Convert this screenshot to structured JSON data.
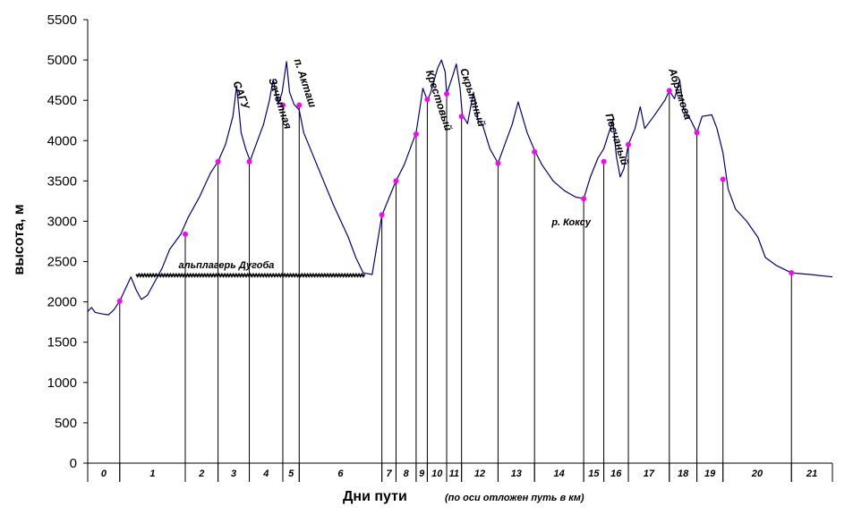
{
  "chart_data": {
    "type": "line",
    "xlabel": "Дни пути",
    "xlabel_note": "(по оси отложен путь в км)",
    "ylabel": "высота, м",
    "ylim": [
      0,
      5500
    ],
    "yticks": [
      0,
      500,
      1000,
      1500,
      2000,
      2500,
      3000,
      3500,
      4000,
      4500,
      5000,
      5500
    ],
    "grid": false,
    "days": [
      "0",
      "1",
      "2",
      "3",
      "4",
      "5",
      "6",
      "7",
      "8",
      "9",
      "10",
      "11",
      "12",
      "13",
      "14",
      "15",
      "16",
      "17",
      "18",
      "19",
      "20",
      "21"
    ],
    "day_boundaries": [
      0,
      0.043,
      0.131,
      0.175,
      0.217,
      0.262,
      0.284,
      0.395,
      0.414,
      0.441,
      0.456,
      0.482,
      0.502,
      0.551,
      0.6,
      0.666,
      0.693,
      0.726,
      0.781,
      0.818,
      0.853,
      0.945,
      1
    ],
    "profile": [
      [
        0,
        1880
      ],
      [
        0.005,
        1930
      ],
      [
        0.01,
        1870
      ],
      [
        0.02,
        1850
      ],
      [
        0.028,
        1840
      ],
      [
        0.035,
        1900
      ],
      [
        0.043,
        2010
      ],
      [
        0.05,
        2150
      ],
      [
        0.058,
        2310
      ],
      [
        0.065,
        2150
      ],
      [
        0.072,
        2030
      ],
      [
        0.08,
        2080
      ],
      [
        0.09,
        2250
      ],
      [
        0.1,
        2420
      ],
      [
        0.11,
        2650
      ],
      [
        0.125,
        2840
      ],
      [
        0.135,
        3050
      ],
      [
        0.15,
        3300
      ],
      [
        0.165,
        3600
      ],
      [
        0.175,
        3740
      ],
      [
        0.185,
        3950
      ],
      [
        0.195,
        4300
      ],
      [
        0.2,
        4680
      ],
      [
        0.206,
        4100
      ],
      [
        0.212,
        3900
      ],
      [
        0.218,
        3750
      ],
      [
        0.228,
        4000
      ],
      [
        0.236,
        4200
      ],
      [
        0.244,
        4500
      ],
      [
        0.249,
        4760
      ],
      [
        0.253,
        4580
      ],
      [
        0.256,
        4450
      ],
      [
        0.261,
        4600
      ],
      [
        0.267,
        4980
      ],
      [
        0.271,
        4600
      ],
      [
        0.277,
        4450
      ],
      [
        0.284,
        4380
      ],
      [
        0.29,
        4100
      ],
      [
        0.31,
        3650
      ],
      [
        0.33,
        3200
      ],
      [
        0.35,
        2800
      ],
      [
        0.36,
        2550
      ],
      [
        0.37,
        2360
      ],
      [
        0.382,
        2340
      ],
      [
        0.395,
        3070
      ],
      [
        0.405,
        3300
      ],
      [
        0.414,
        3500
      ],
      [
        0.425,
        3700
      ],
      [
        0.441,
        4100
      ],
      [
        0.446,
        4400
      ],
      [
        0.45,
        4650
      ],
      [
        0.456,
        4500
      ],
      [
        0.46,
        4580
      ],
      [
        0.47,
        4900
      ],
      [
        0.475,
        5000
      ],
      [
        0.48,
        4850
      ],
      [
        0.482,
        4580
      ],
      [
        0.49,
        4800
      ],
      [
        0.495,
        4950
      ],
      [
        0.5,
        4650
      ],
      [
        0.503,
        4320
      ],
      [
        0.51,
        4210
      ],
      [
        0.518,
        4600
      ],
      [
        0.524,
        4250
      ],
      [
        0.53,
        4200
      ],
      [
        0.54,
        3900
      ],
      [
        0.551,
        3720
      ],
      [
        0.56,
        3950
      ],
      [
        0.57,
        4200
      ],
      [
        0.578,
        4480
      ],
      [
        0.59,
        4100
      ],
      [
        0.6,
        3880
      ],
      [
        0.61,
        3700
      ],
      [
        0.625,
        3500
      ],
      [
        0.64,
        3380
      ],
      [
        0.655,
        3300
      ],
      [
        0.666,
        3280
      ],
      [
        0.675,
        3550
      ],
      [
        0.685,
        3780
      ],
      [
        0.693,
        3900
      ],
      [
        0.705,
        4250
      ],
      [
        0.71,
        3800
      ],
      [
        0.715,
        3550
      ],
      [
        0.72,
        3650
      ],
      [
        0.726,
        3950
      ],
      [
        0.735,
        4150
      ],
      [
        0.742,
        4420
      ],
      [
        0.748,
        4150
      ],
      [
        0.76,
        4300
      ],
      [
        0.775,
        4500
      ],
      [
        0.781,
        4620
      ],
      [
        0.788,
        4520
      ],
      [
        0.795,
        4750
      ],
      [
        0.8,
        4400
      ],
      [
        0.81,
        4250
      ],
      [
        0.818,
        4100
      ],
      [
        0.825,
        4300
      ],
      [
        0.838,
        4320
      ],
      [
        0.845,
        4150
      ],
      [
        0.853,
        3850
      ],
      [
        0.86,
        3400
      ],
      [
        0.87,
        3150
      ],
      [
        0.885,
        3000
      ],
      [
        0.9,
        2800
      ],
      [
        0.91,
        2550
      ],
      [
        0.925,
        2450
      ],
      [
        0.945,
        2360
      ],
      [
        0.97,
        2340
      ],
      [
        1,
        2310
      ]
    ],
    "points": [
      [
        0.043,
        2010
      ],
      [
        0.131,
        2840
      ],
      [
        0.175,
        3740
      ],
      [
        0.217,
        3740
      ],
      [
        0.262,
        4440
      ],
      [
        0.284,
        4440
      ],
      [
        0.395,
        3080
      ],
      [
        0.414,
        3500
      ],
      [
        0.441,
        4080
      ],
      [
        0.456,
        4510
      ],
      [
        0.482,
        4580
      ],
      [
        0.502,
        4300
      ],
      [
        0.551,
        3720
      ],
      [
        0.6,
        3860
      ],
      [
        0.666,
        3280
      ],
      [
        0.693,
        3740
      ],
      [
        0.726,
        3950
      ],
      [
        0.781,
        4620
      ],
      [
        0.818,
        4100
      ],
      [
        0.853,
        3520
      ],
      [
        0.945,
        2360
      ]
    ],
    "camp_line": {
      "from": 0.065,
      "to": 0.372,
      "value": 2330
    },
    "annotations": [
      {
        "text": "САГУ",
        "x": 0.195,
        "y": 4720,
        "rotate": 70
      },
      {
        "text": "Зачетная",
        "x": 0.243,
        "y": 4760,
        "rotate": 72
      },
      {
        "text": "п. Акташ",
        "x": 0.277,
        "y": 5000,
        "rotate": 72
      },
      {
        "text": "Крестовый",
        "x": 0.454,
        "y": 4860,
        "rotate": 72
      },
      {
        "text": "Скрытный",
        "x": 0.5,
        "y": 4880,
        "rotate": 72
      },
      {
        "text": "Песчаный",
        "x": 0.695,
        "y": 4320,
        "rotate": 72
      },
      {
        "text": "Абрамова",
        "x": 0.78,
        "y": 4880,
        "rotate": 72
      },
      {
        "text": "альплагерь Дугоба",
        "x": 0.122,
        "y": 2420,
        "rotate": 0
      },
      {
        "text": "р. Кокcу",
        "x": 0.623,
        "y": 2950,
        "rotate": 0
      }
    ],
    "colors": {
      "line": "#000080",
      "marker": "#ff00ff",
      "axis": "#000000"
    }
  }
}
